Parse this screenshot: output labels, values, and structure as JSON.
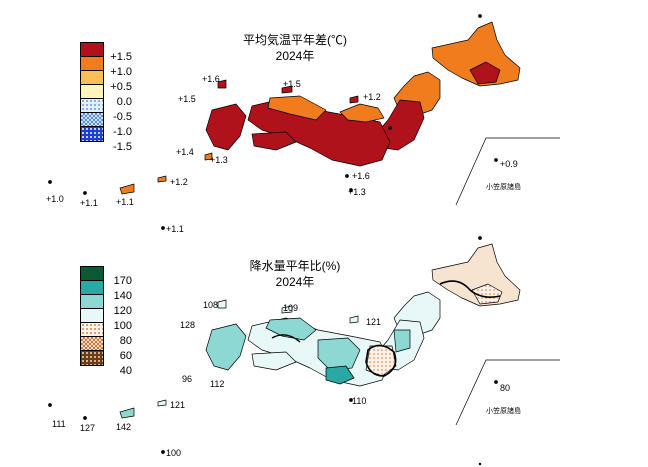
{
  "temperature_map": {
    "title_line1": "平均気温平年差(℃)",
    "title_line2": "2024年",
    "legend": [
      {
        "label": "+1.5",
        "color": "#b0121c",
        "pattern": "solid"
      },
      {
        "label": "+1.0",
        "color": "#f07c1e",
        "pattern": "solid"
      },
      {
        "label": "+0.5",
        "color": "#fbbf55",
        "pattern": "solid"
      },
      {
        "label": "0.0",
        "color": "#fdf5b9",
        "pattern": "solid"
      },
      {
        "label": "-0.5",
        "color": "#9fc0ee",
        "pattern": "dots-light"
      },
      {
        "label": "-1.0",
        "color": "#5a8fe0",
        "pattern": "checker"
      },
      {
        "label": "-1.5",
        "color": "#1b3fd6",
        "pattern": "dots-dense"
      }
    ],
    "station_values": [
      "+1.6",
      "+1.5",
      "+1.5",
      "+1.2",
      "+1.4",
      "+1.3",
      "+1.2",
      "+1.6",
      "+1.3",
      "+1.0",
      "+1.1",
      "+1.1",
      "+1.1",
      "+0.9"
    ],
    "islands_label": "小笠原諸島"
  },
  "precipitation_map": {
    "title_line1": "降水量平年比(%)",
    "title_line2": "2024年",
    "legend": [
      {
        "label": "170",
        "color": "#0b5a33",
        "pattern": "solid"
      },
      {
        "label": "140",
        "color": "#2aa8a3",
        "pattern": "solid"
      },
      {
        "label": "120",
        "color": "#8ed8d4",
        "pattern": "solid"
      },
      {
        "label": "100",
        "color": "#e8f8f8",
        "pattern": "solid"
      },
      {
        "label": "80",
        "color": "#f6e4d0",
        "pattern": "dots-light"
      },
      {
        "label": "60",
        "color": "#d59a6c",
        "pattern": "checker"
      },
      {
        "label": "40",
        "color": "#6e3b17",
        "pattern": "dots-dense"
      }
    ],
    "station_values": [
      "108",
      "109",
      "128",
      "121",
      "96",
      "112",
      "121",
      "110",
      "111",
      "127",
      "142",
      "100",
      "80"
    ],
    "islands_label": "小笠原諸島"
  },
  "colors": {
    "outline": "#000000",
    "temp_dark_red": "#b0121c",
    "temp_orange": "#f07c1e",
    "temp_light_orange": "#fbbf55",
    "prec_teal": "#2aa8a3",
    "prec_light_teal": "#8ed8d4",
    "prec_pale": "#e8f8f8",
    "prec_brown_light": "#f6e4d0"
  }
}
